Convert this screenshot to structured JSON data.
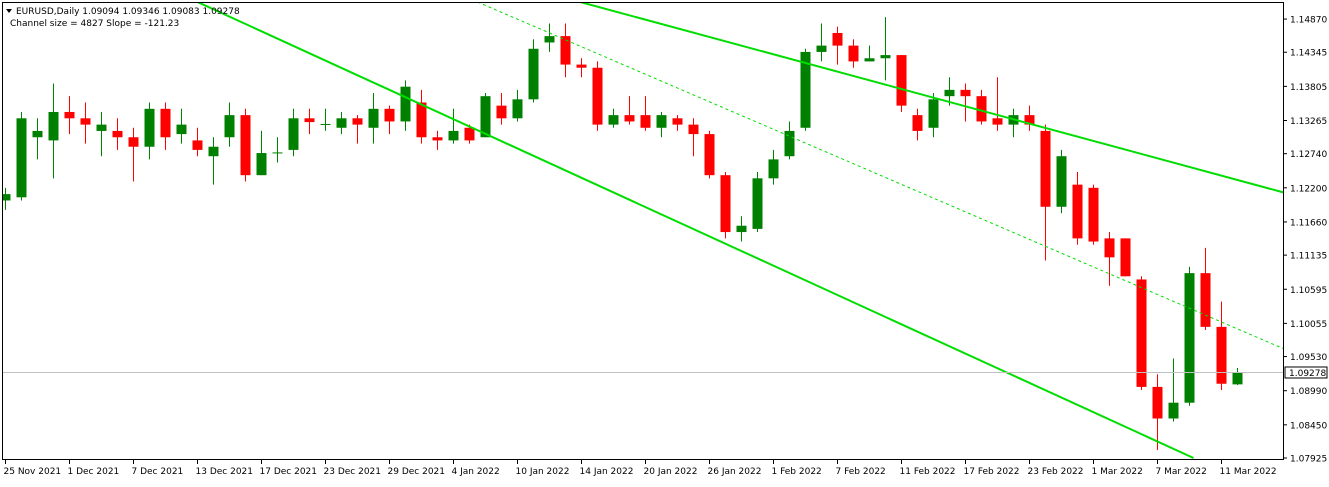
{
  "header": {
    "symbol_line": "EURUSD,Daily  1.09094 1.09346 1.09083 1.09278",
    "channel_line": "Channel size = 4827 Slope = -121.23"
  },
  "colors": {
    "up": "#008000",
    "down": "#ff0000",
    "channel": "#00dd00",
    "grid_current": "#c0c0c0",
    "current_label_bg": "#ffffff"
  },
  "current_price": {
    "value": 1.09278,
    "label": "1.09278"
  },
  "chart_data": {
    "type": "candlestick",
    "symbol": "EURUSD",
    "timeframe": "Daily",
    "ylim": [
      1.07925,
      1.1514
    ],
    "y_ticks": [
      "1.14870",
      "1.14345",
      "1.13805",
      "1.13265",
      "1.12740",
      "1.12200",
      "1.11660",
      "1.11135",
      "1.10595",
      "1.10055",
      "1.09530",
      "1.08990",
      "1.08450",
      "1.07925"
    ],
    "x_labels": [
      {
        "bar": 0,
        "label": "25 Nov 2021"
      },
      {
        "bar": 4,
        "label": "1 Dec 2021"
      },
      {
        "bar": 8,
        "label": "7 Dec 2021"
      },
      {
        "bar": 12,
        "label": "13 Dec 2021"
      },
      {
        "bar": 16,
        "label": "17 Dec 2021"
      },
      {
        "bar": 20,
        "label": "23 Dec 2021"
      },
      {
        "bar": 24,
        "label": "29 Dec 2021"
      },
      {
        "bar": 28,
        "label": "4 Jan 2022"
      },
      {
        "bar": 32,
        "label": "10 Jan 2022"
      },
      {
        "bar": 36,
        "label": "14 Jan 2022"
      },
      {
        "bar": 40,
        "label": "20 Jan 2022"
      },
      {
        "bar": 44,
        "label": "26 Jan 2022"
      },
      {
        "bar": 48,
        "label": "1 Feb 2022"
      },
      {
        "bar": 52,
        "label": "7 Feb 2022"
      },
      {
        "bar": 56,
        "label": "11 Feb 2022"
      },
      {
        "bar": 60,
        "label": "17 Feb 2022"
      },
      {
        "bar": 64,
        "label": "23 Feb 2022"
      },
      {
        "bar": 68,
        "label": "1 Mar 2022"
      },
      {
        "bar": 72,
        "label": "7 Mar 2022"
      },
      {
        "bar": 76,
        "label": "11 Mar 2022"
      }
    ],
    "candles": [
      {
        "o": 1.12,
        "h": 1.122,
        "l": 1.1185,
        "c": 1.121
      },
      {
        "o": 1.1205,
        "h": 1.134,
        "l": 1.12,
        "c": 1.133
      },
      {
        "o": 1.13,
        "h": 1.133,
        "l": 1.1265,
        "c": 1.131
      },
      {
        "o": 1.1295,
        "h": 1.1385,
        "l": 1.1235,
        "c": 1.134
      },
      {
        "o": 1.134,
        "h": 1.1365,
        "l": 1.1305,
        "c": 1.133
      },
      {
        "o": 1.133,
        "h": 1.1355,
        "l": 1.129,
        "c": 1.132
      },
      {
        "o": 1.131,
        "h": 1.134,
        "l": 1.127,
        "c": 1.132
      },
      {
        "o": 1.131,
        "h": 1.133,
        "l": 1.128,
        "c": 1.13
      },
      {
        "o": 1.13,
        "h": 1.1315,
        "l": 1.123,
        "c": 1.1285
      },
      {
        "o": 1.1285,
        "h": 1.1355,
        "l": 1.1265,
        "c": 1.1345
      },
      {
        "o": 1.1345,
        "h": 1.1355,
        "l": 1.128,
        "c": 1.13
      },
      {
        "o": 1.1305,
        "h": 1.1345,
        "l": 1.129,
        "c": 1.132
      },
      {
        "o": 1.1295,
        "h": 1.1315,
        "l": 1.127,
        "c": 1.128
      },
      {
        "o": 1.127,
        "h": 1.13,
        "l": 1.1225,
        "c": 1.1285
      },
      {
        "o": 1.13,
        "h": 1.1355,
        "l": 1.1285,
        "c": 1.1335
      },
      {
        "o": 1.1335,
        "h": 1.1345,
        "l": 1.123,
        "c": 1.124
      },
      {
        "o": 1.124,
        "h": 1.131,
        "l": 1.124,
        "c": 1.1275
      },
      {
        "o": 1.1275,
        "h": 1.13,
        "l": 1.126,
        "c": 1.1276
      },
      {
        "o": 1.128,
        "h": 1.1345,
        "l": 1.127,
        "c": 1.133
      },
      {
        "o": 1.133,
        "h": 1.1345,
        "l": 1.1305,
        "c": 1.1324
      },
      {
        "o": 1.132,
        "h": 1.1345,
        "l": 1.131,
        "c": 1.1321
      },
      {
        "o": 1.1315,
        "h": 1.134,
        "l": 1.1305,
        "c": 1.133
      },
      {
        "o": 1.133,
        "h": 1.1335,
        "l": 1.129,
        "c": 1.132
      },
      {
        "o": 1.1315,
        "h": 1.137,
        "l": 1.129,
        "c": 1.1345
      },
      {
        "o": 1.1345,
        "h": 1.135,
        "l": 1.1305,
        "c": 1.1325
      },
      {
        "o": 1.1325,
        "h": 1.139,
        "l": 1.131,
        "c": 1.138
      },
      {
        "o": 1.1355,
        "h": 1.1375,
        "l": 1.129,
        "c": 1.13
      },
      {
        "o": 1.13,
        "h": 1.131,
        "l": 1.128,
        "c": 1.1295
      },
      {
        "o": 1.1295,
        "h": 1.1345,
        "l": 1.129,
        "c": 1.131
      },
      {
        "o": 1.1315,
        "h": 1.132,
        "l": 1.129,
        "c": 1.1295
      },
      {
        "o": 1.13,
        "h": 1.137,
        "l": 1.13,
        "c": 1.1365
      },
      {
        "o": 1.135,
        "h": 1.137,
        "l": 1.132,
        "c": 1.133
      },
      {
        "o": 1.133,
        "h": 1.1375,
        "l": 1.1325,
        "c": 1.136
      },
      {
        "o": 1.136,
        "h": 1.1455,
        "l": 1.1355,
        "c": 1.144
      },
      {
        "o": 1.145,
        "h": 1.148,
        "l": 1.1435,
        "c": 1.146
      },
      {
        "o": 1.146,
        "h": 1.148,
        "l": 1.1395,
        "c": 1.1415
      },
      {
        "o": 1.1415,
        "h": 1.1425,
        "l": 1.1395,
        "c": 1.141
      },
      {
        "o": 1.141,
        "h": 1.142,
        "l": 1.131,
        "c": 1.132
      },
      {
        "o": 1.132,
        "h": 1.1345,
        "l": 1.1315,
        "c": 1.1335
      },
      {
        "o": 1.1335,
        "h": 1.1365,
        "l": 1.132,
        "c": 1.1325
      },
      {
        "o": 1.1335,
        "h": 1.1365,
        "l": 1.131,
        "c": 1.1315
      },
      {
        "o": 1.1315,
        "h": 1.134,
        "l": 1.13,
        "c": 1.1335
      },
      {
        "o": 1.133,
        "h": 1.1335,
        "l": 1.131,
        "c": 1.132
      },
      {
        "o": 1.132,
        "h": 1.133,
        "l": 1.127,
        "c": 1.1305
      },
      {
        "o": 1.1305,
        "h": 1.131,
        "l": 1.1235,
        "c": 1.124
      },
      {
        "o": 1.124,
        "h": 1.1245,
        "l": 1.114,
        "c": 1.115
      },
      {
        "o": 1.115,
        "h": 1.1175,
        "l": 1.1135,
        "c": 1.116
      },
      {
        "o": 1.1155,
        "h": 1.1245,
        "l": 1.115,
        "c": 1.1235
      },
      {
        "o": 1.1235,
        "h": 1.128,
        "l": 1.1225,
        "c": 1.1265
      },
      {
        "o": 1.127,
        "h": 1.1325,
        "l": 1.1265,
        "c": 1.131
      },
      {
        "o": 1.1315,
        "h": 1.144,
        "l": 1.131,
        "c": 1.1435
      },
      {
        "o": 1.1435,
        "h": 1.148,
        "l": 1.142,
        "c": 1.1445
      },
      {
        "o": 1.1465,
        "h": 1.1475,
        "l": 1.1415,
        "c": 1.1445
      },
      {
        "o": 1.1445,
        "h": 1.1455,
        "l": 1.141,
        "c": 1.142
      },
      {
        "o": 1.142,
        "h": 1.1445,
        "l": 1.142,
        "c": 1.1425
      },
      {
        "o": 1.1425,
        "h": 1.149,
        "l": 1.139,
        "c": 1.143
      },
      {
        "o": 1.143,
        "h": 1.143,
        "l": 1.134,
        "c": 1.135
      },
      {
        "o": 1.1335,
        "h": 1.1345,
        "l": 1.1295,
        "c": 1.131
      },
      {
        "o": 1.1315,
        "h": 1.137,
        "l": 1.13,
        "c": 1.136
      },
      {
        "o": 1.1365,
        "h": 1.1395,
        "l": 1.135,
        "c": 1.1375
      },
      {
        "o": 1.1375,
        "h": 1.1385,
        "l": 1.1325,
        "c": 1.1365
      },
      {
        "o": 1.1365,
        "h": 1.1375,
        "l": 1.132,
        "c": 1.1325
      },
      {
        "o": 1.133,
        "h": 1.1395,
        "l": 1.131,
        "c": 1.132
      },
      {
        "o": 1.132,
        "h": 1.1345,
        "l": 1.13,
        "c": 1.1335
      },
      {
        "o": 1.1335,
        "h": 1.135,
        "l": 1.131,
        "c": 1.132
      },
      {
        "o": 1.131,
        "h": 1.132,
        "l": 1.1105,
        "c": 1.119
      },
      {
        "o": 1.119,
        "h": 1.128,
        "l": 1.118,
        "c": 1.127
      },
      {
        "o": 1.1225,
        "h": 1.1245,
        "l": 1.113,
        "c": 1.114
      },
      {
        "o": 1.122,
        "h": 1.1225,
        "l": 1.113,
        "c": 1.1135
      },
      {
        "o": 1.114,
        "h": 1.115,
        "l": 1.1065,
        "c": 1.111
      },
      {
        "o": 1.114,
        "h": 1.114,
        "l": 1.108,
        "c": 1.108
      },
      {
        "o": 1.1075,
        "h": 1.108,
        "l": 1.09,
        "c": 1.0905
      },
      {
        "o": 1.0905,
        "h": 1.0925,
        "l": 1.0805,
        "c": 1.0855
      },
      {
        "o": 1.0855,
        "h": 1.095,
        "l": 1.085,
        "c": 1.088
      },
      {
        "o": 1.088,
        "h": 1.1095,
        "l": 1.0875,
        "c": 1.1085
      },
      {
        "o": 1.1085,
        "h": 1.1125,
        "l": 1.0995,
        "c": 1.1
      },
      {
        "o": 1.1,
        "h": 1.104,
        "l": 1.09,
        "c": 1.091
      },
      {
        "o": 1.0909,
        "h": 1.0935,
        "l": 1.0908,
        "c": 1.0928
      }
    ],
    "channel": {
      "upper": {
        "bar1": 29.5,
        "price1": 1.1558,
        "bar2": 81.0,
        "price2": 1.1205
      },
      "middle": {
        "bar1": 29.5,
        "price1": 1.1514,
        "bar2": 81.0,
        "price2": 1.09532
      },
      "lower": {
        "bar1": 12.0,
        "price1": 1.1514,
        "bar2": 74.25,
        "price2": 1.07925
      }
    }
  }
}
